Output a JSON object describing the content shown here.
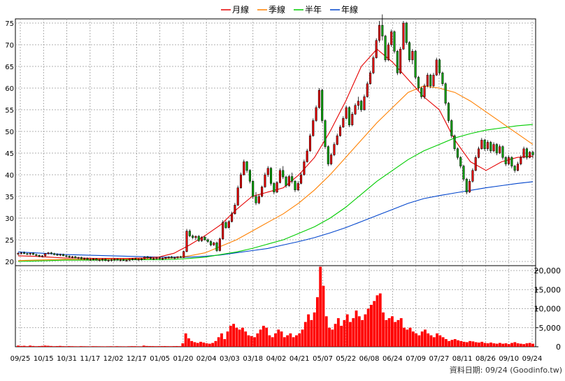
{
  "chart_data": {
    "type": "candlestick-with-volume",
    "legend": {
      "position": "top-center",
      "items": [
        {
          "name": "月線",
          "color": "#e60000"
        },
        {
          "name": "季線",
          "color": "#ff8000"
        },
        {
          "name": "半年",
          "color": "#00cc00"
        },
        {
          "name": "年線",
          "color": "#0044cc"
        }
      ]
    },
    "price_axis": {
      "min": 20,
      "max": 75,
      "ticks": [
        "20",
        "25",
        "30",
        "35",
        "40",
        "45",
        "50",
        "55",
        "60",
        "65",
        "70",
        "75"
      ],
      "grid": true
    },
    "volume_axis": {
      "min": 0,
      "max": 20000,
      "ticks": [
        "0",
        "5,000",
        "10,000",
        "15,000",
        "20,000"
      ]
    },
    "x_tick_labels": [
      "09/25",
      "10/15",
      "10/31",
      "11/17",
      "12/02",
      "12/17",
      "01/05",
      "01/20",
      "02/04",
      "03/03",
      "03/18",
      "04/02",
      "04/21",
      "05/07",
      "05/22",
      "06/08",
      "06/24",
      "07/09",
      "07/27",
      "08/11",
      "08/26",
      "09/10",
      "09/24"
    ],
    "footer": "資料日期: 09/24 (Goodinfo.tw)",
    "colors": {
      "up": "#e60000",
      "down": "#00a000",
      "volume": "#ff0000",
      "grid": "#999999"
    },
    "candles": [
      [
        21.7,
        22.1,
        21.4,
        21.9
      ],
      [
        21.9,
        22.2,
        21.6,
        22.0
      ],
      [
        22.0,
        22.3,
        21.7,
        21.8
      ],
      [
        21.8,
        22.0,
        21.5,
        21.7
      ],
      [
        21.7,
        22.0,
        21.4,
        21.9
      ],
      [
        21.9,
        22.1,
        21.5,
        21.6
      ],
      [
        21.6,
        21.8,
        21.2,
        21.4
      ],
      [
        21.4,
        21.6,
        21.0,
        21.2
      ],
      [
        21.2,
        21.5,
        20.9,
        21.3
      ],
      [
        21.3,
        21.9,
        21.1,
        21.8
      ],
      [
        21.8,
        22.2,
        21.6,
        22.0
      ],
      [
        22.0,
        22.2,
        21.6,
        21.8
      ],
      [
        21.8,
        22.0,
        21.4,
        21.6
      ],
      [
        21.6,
        21.9,
        21.3,
        21.5
      ],
      [
        21.5,
        21.8,
        21.2,
        21.6
      ],
      [
        21.6,
        21.8,
        21.2,
        21.3
      ],
      [
        21.3,
        21.5,
        21.0,
        21.2
      ],
      [
        21.2,
        21.4,
        20.8,
        21.0
      ],
      [
        21.0,
        21.3,
        20.7,
        21.1
      ],
      [
        21.1,
        21.3,
        20.7,
        20.8
      ],
      [
        20.8,
        21.1,
        20.5,
        20.9
      ],
      [
        20.9,
        21.1,
        20.5,
        20.6
      ],
      [
        20.6,
        20.9,
        20.3,
        20.7
      ],
      [
        20.7,
        20.9,
        20.3,
        20.4
      ],
      [
        20.4,
        20.7,
        20.1,
        20.5
      ],
      [
        20.5,
        20.8,
        20.2,
        20.6
      ],
      [
        20.6,
        20.8,
        20.2,
        20.3
      ],
      [
        20.3,
        20.6,
        20.0,
        20.4
      ],
      [
        20.4,
        20.7,
        20.1,
        20.5
      ],
      [
        20.5,
        20.7,
        20.1,
        20.2
      ],
      [
        20.2,
        20.5,
        19.9,
        20.3
      ],
      [
        20.3,
        20.6,
        20.0,
        20.4
      ],
      [
        20.4,
        20.7,
        20.1,
        20.5
      ],
      [
        20.5,
        20.7,
        20.2,
        20.3
      ],
      [
        20.3,
        20.6,
        20.0,
        20.4
      ],
      [
        20.4,
        20.6,
        20.1,
        20.2
      ],
      [
        20.2,
        20.5,
        19.9,
        20.3
      ],
      [
        20.3,
        20.6,
        20.0,
        20.5
      ],
      [
        20.5,
        20.8,
        20.2,
        20.6
      ],
      [
        20.6,
        20.9,
        20.3,
        20.4
      ],
      [
        20.4,
        20.7,
        20.1,
        20.5
      ],
      [
        20.5,
        20.8,
        20.2,
        20.6
      ],
      [
        20.6,
        21.2,
        20.4,
        21.0
      ],
      [
        21.0,
        21.3,
        20.6,
        20.8
      ],
      [
        20.8,
        21.1,
        20.5,
        20.6
      ],
      [
        20.6,
        20.9,
        20.3,
        20.7
      ],
      [
        20.7,
        21.0,
        20.4,
        20.8
      ],
      [
        20.8,
        21.1,
        20.5,
        20.6
      ],
      [
        20.6,
        20.9,
        20.3,
        20.7
      ],
      [
        20.7,
        21.0,
        20.4,
        20.9
      ],
      [
        20.9,
        21.2,
        20.6,
        21.0
      ],
      [
        21.0,
        21.3,
        20.7,
        20.8
      ],
      [
        20.8,
        21.1,
        20.5,
        20.9
      ],
      [
        20.9,
        21.2,
        20.6,
        21.1
      ],
      [
        21.1,
        21.3,
        20.8,
        20.9
      ],
      [
        20.9,
        22.5,
        20.8,
        22.3
      ],
      [
        22.3,
        27.5,
        22.1,
        27.0
      ],
      [
        27.0,
        27.4,
        25.6,
        25.9
      ],
      [
        25.9,
        26.2,
        25.2,
        25.5
      ],
      [
        25.5,
        26.0,
        25.0,
        25.8
      ],
      [
        25.8,
        26.1,
        24.5,
        24.8
      ],
      [
        24.8,
        25.8,
        24.5,
        25.6
      ],
      [
        25.6,
        25.9,
        24.8,
        25.0
      ],
      [
        25.0,
        25.3,
        24.3,
        24.6
      ],
      [
        24.6,
        24.9,
        23.5,
        23.8
      ],
      [
        23.8,
        24.5,
        23.6,
        24.3
      ],
      [
        24.3,
        24.6,
        22.2,
        22.5
      ],
      [
        22.5,
        25.5,
        22.3,
        25.2
      ],
      [
        25.2,
        29.5,
        25.0,
        29.0
      ],
      [
        29.0,
        29.4,
        27.5,
        27.8
      ],
      [
        27.8,
        29.5,
        27.6,
        29.2
      ],
      [
        29.2,
        31.5,
        29.0,
        31.0
      ],
      [
        31.0,
        33.5,
        30.8,
        33.0
      ],
      [
        33.0,
        37.5,
        32.8,
        37.0
      ],
      [
        37.0,
        40.5,
        36.8,
        40.0
      ],
      [
        40.0,
        43.5,
        39.8,
        43.0
      ],
      [
        43.0,
        43.2,
        40.5,
        41.0
      ],
      [
        41.0,
        41.3,
        38.0,
        38.5
      ],
      [
        38.5,
        38.8,
        34.5,
        35.0
      ],
      [
        35.0,
        36.0,
        33.0,
        33.5
      ],
      [
        33.5,
        35.5,
        33.2,
        35.0
      ],
      [
        35.0,
        37.5,
        34.8,
        37.2
      ],
      [
        37.2,
        40.5,
        37.0,
        40.0
      ],
      [
        40.0,
        42.0,
        39.5,
        41.5
      ],
      [
        41.5,
        41.8,
        37.5,
        38.0
      ],
      [
        38.0,
        38.3,
        35.5,
        36.0
      ],
      [
        36.0,
        38.5,
        35.8,
        38.2
      ],
      [
        38.2,
        41.5,
        38.0,
        41.0
      ],
      [
        41.0,
        42.0,
        39.0,
        39.5
      ],
      [
        39.5,
        39.8,
        37.0,
        37.5
      ],
      [
        37.5,
        40.0,
        37.2,
        39.6
      ],
      [
        39.6,
        40.5,
        38.0,
        38.5
      ],
      [
        38.5,
        38.8,
        36.0,
        36.5
      ],
      [
        36.5,
        38.5,
        36.2,
        38.0
      ],
      [
        38.0,
        40.5,
        37.8,
        40.0
      ],
      [
        40.0,
        43.5,
        39.8,
        43.0
      ],
      [
        43.0,
        46.0,
        42.8,
        45.5
      ],
      [
        45.5,
        49.5,
        45.3,
        49.0
      ],
      [
        49.0,
        53.0,
        48.8,
        52.5
      ],
      [
        52.5,
        56.0,
        52.2,
        55.5
      ],
      [
        55.5,
        60.0,
        55.2,
        59.5
      ],
      [
        59.5,
        59.8,
        52.0,
        52.5
      ],
      [
        52.5,
        52.8,
        46.0,
        46.5
      ],
      [
        46.5,
        46.8,
        42.0,
        42.5
      ],
      [
        42.5,
        45.0,
        42.2,
        44.6
      ],
      [
        44.6,
        47.5,
        44.3,
        47.0
      ],
      [
        47.0,
        49.5,
        46.8,
        49.0
      ],
      [
        49.0,
        51.5,
        48.8,
        51.0
      ],
      [
        51.0,
        53.5,
        50.8,
        53.0
      ],
      [
        53.0,
        56.0,
        52.8,
        55.5
      ],
      [
        55.5,
        55.8,
        51.0,
        51.5
      ],
      [
        51.5,
        54.5,
        51.2,
        54.0
      ],
      [
        54.0,
        56.5,
        53.8,
        56.0
      ],
      [
        56.0,
        58.0,
        55.0,
        57.0
      ],
      [
        57.0,
        57.3,
        54.5,
        55.0
      ],
      [
        55.0,
        58.5,
        54.8,
        58.0
      ],
      [
        58.0,
        61.5,
        57.8,
        61.0
      ],
      [
        61.0,
        64.0,
        60.8,
        63.5
      ],
      [
        63.5,
        67.5,
        63.2,
        67.0
      ],
      [
        67.0,
        71.5,
        66.8,
        71.0
      ],
      [
        71.0,
        75.5,
        70.5,
        74.5
      ],
      [
        74.5,
        77.0,
        71.0,
        72.0
      ],
      [
        72.0,
        72.3,
        66.0,
        66.5
      ],
      [
        66.5,
        70.5,
        66.2,
        70.0
      ],
      [
        70.0,
        73.5,
        69.5,
        73.0
      ],
      [
        73.0,
        73.3,
        68.0,
        68.5
      ],
      [
        68.5,
        68.8,
        63.0,
        63.5
      ],
      [
        63.5,
        69.5,
        63.2,
        69.0
      ],
      [
        69.0,
        75.5,
        68.8,
        75.0
      ],
      [
        75.0,
        75.3,
        70.0,
        70.5
      ],
      [
        70.5,
        70.8,
        66.0,
        66.5
      ],
      [
        66.5,
        69.0,
        65.5,
        68.5
      ],
      [
        68.5,
        68.8,
        62.0,
        62.5
      ],
      [
        62.5,
        62.8,
        59.5,
        60.0
      ],
      [
        60.0,
        60.3,
        57.5,
        58.0
      ],
      [
        58.0,
        61.0,
        57.5,
        60.5
      ],
      [
        60.5,
        63.5,
        60.2,
        63.0
      ],
      [
        63.0,
        63.3,
        60.0,
        60.5
      ],
      [
        60.5,
        63.5,
        60.2,
        63.0
      ],
      [
        63.0,
        67.0,
        62.8,
        66.5
      ],
      [
        66.5,
        66.8,
        63.0,
        63.5
      ],
      [
        63.5,
        63.8,
        60.5,
        61.0
      ],
      [
        61.0,
        61.3,
        56.0,
        56.5
      ],
      [
        56.5,
        56.8,
        52.0,
        52.5
      ],
      [
        52.5,
        52.8,
        48.5,
        49.0
      ],
      [
        49.0,
        49.3,
        45.5,
        46.0
      ],
      [
        46.0,
        46.3,
        43.5,
        44.0
      ],
      [
        44.0,
        44.3,
        41.5,
        42.0
      ],
      [
        42.0,
        42.3,
        38.5,
        39.0
      ],
      [
        39.0,
        39.3,
        35.5,
        36.0
      ],
      [
        36.0,
        39.0,
        35.8,
        38.5
      ],
      [
        38.5,
        41.5,
        38.2,
        41.0
      ],
      [
        41.0,
        44.5,
        40.8,
        44.0
      ],
      [
        44.0,
        46.5,
        43.8,
        46.0
      ],
      [
        46.0,
        48.5,
        45.8,
        48.0
      ],
      [
        48.0,
        48.3,
        45.5,
        46.0
      ],
      [
        46.0,
        48.0,
        45.5,
        47.5
      ],
      [
        47.5,
        47.8,
        45.0,
        45.5
      ],
      [
        45.5,
        47.5,
        45.2,
        47.0
      ],
      [
        47.0,
        47.3,
        44.5,
        45.0
      ],
      [
        45.0,
        47.0,
        44.8,
        46.5
      ],
      [
        46.5,
        46.8,
        43.5,
        44.0
      ],
      [
        44.0,
        44.3,
        42.0,
        42.5
      ],
      [
        42.5,
        44.5,
        42.2,
        44.0
      ],
      [
        44.0,
        44.3,
        41.5,
        42.0
      ],
      [
        42.0,
        42.3,
        40.5,
        41.0
      ],
      [
        41.0,
        43.0,
        40.8,
        42.5
      ],
      [
        42.5,
        44.5,
        42.2,
        44.0
      ],
      [
        44.0,
        46.5,
        43.8,
        46.0
      ],
      [
        46.0,
        46.3,
        43.5,
        44.0
      ],
      [
        44.0,
        45.5,
        43.8,
        45.2
      ],
      [
        45.2,
        45.5,
        43.8,
        44.6
      ]
    ],
    "ma20": [
      21.3,
      21.2,
      21.0,
      20.8,
      20.8,
      20.7,
      20.7,
      20.7,
      20.8,
      21.0,
      21.9,
      23.8,
      26.0,
      28.5,
      32.0,
      35.0,
      36.0,
      37.0,
      40.0,
      44.0,
      50.0,
      57.0,
      65.0,
      69.0,
      66.0,
      62.0,
      58.0,
      55.0,
      48.0,
      43.0,
      41.0,
      43.0,
      44.0,
      44.3
    ],
    "ma60": [
      20.2,
      20.3,
      20.4,
      20.5,
      20.5,
      20.5,
      20.6,
      20.6,
      20.6,
      20.7,
      20.8,
      21.3,
      22.0,
      23.5,
      25.0,
      27.0,
      29.0,
      31.0,
      33.5,
      36.5,
      40.0,
      44.0,
      48.0,
      52.0,
      55.5,
      59.0,
      60.5,
      60.0,
      59.0,
      57.0,
      54.5,
      52.0,
      49.5,
      47.0
    ],
    "ma120": [
      20.0,
      20.1,
      20.2,
      20.3,
      20.3,
      20.3,
      20.3,
      20.4,
      20.4,
      20.4,
      20.5,
      20.7,
      21.0,
      21.6,
      22.2,
      23.0,
      24.0,
      25.0,
      26.5,
      28.0,
      30.0,
      32.5,
      35.5,
      38.5,
      41.0,
      43.5,
      45.5,
      47.0,
      48.5,
      49.5,
      50.3,
      50.8,
      51.3,
      51.6
    ],
    "ma240": [
      22.2,
      22.0,
      21.8,
      21.6,
      21.5,
      21.4,
      21.3,
      21.2,
      21.1,
      21.0,
      21.0,
      21.0,
      21.2,
      21.5,
      22.0,
      22.5,
      23.0,
      23.8,
      24.6,
      25.5,
      26.6,
      27.8,
      29.2,
      30.6,
      32.0,
      33.4,
      34.5,
      35.2,
      35.8,
      36.4,
      37.0,
      37.5,
      38.0,
      38.4
    ],
    "volume": [
      300,
      200,
      250,
      150,
      300,
      200,
      150,
      180,
      220,
      300,
      250,
      200,
      150,
      180,
      220,
      160,
      140,
      170,
      150,
      130,
      120,
      160,
      140,
      130,
      120,
      150,
      140,
      130,
      120,
      110,
      130,
      140,
      120,
      150,
      130,
      120,
      110,
      140,
      160,
      150,
      130,
      120,
      300,
      200,
      180,
      170,
      150,
      160,
      170,
      180,
      160,
      150,
      170,
      180,
      160,
      900,
      3500,
      2200,
      1500,
      1200,
      1000,
      1300,
      1100,
      900,
      800,
      1000,
      1500,
      2500,
      3500,
      2000,
      4000,
      5500,
      6000,
      5000,
      4500,
      5000,
      4000,
      3000,
      2800,
      2500,
      3500,
      4500,
      5500,
      5000,
      3000,
      2500,
      3500,
      4500,
      4000,
      2500,
      3000,
      3500,
      2500,
      3000,
      3500,
      4500,
      6500,
      8500,
      7000,
      9000,
      13000,
      21000,
      16000,
      8000,
      5000,
      4500,
      6000,
      7500,
      5500,
      7000,
      8500,
      6500,
      7500,
      9500,
      8000,
      7000,
      8500,
      10000,
      11000,
      12000,
      13500,
      14000,
      9000,
      7000,
      7500,
      8000,
      6500,
      7000,
      7500,
      5000,
      4500,
      5000,
      4000,
      3500,
      3000,
      4000,
      4500,
      3500,
      3000,
      2500,
      3500,
      3000,
      2500,
      2000,
      1500,
      1800,
      2000,
      1700,
      1500,
      1300,
      1200,
      1500,
      1400,
      1200,
      1100,
      1300,
      1000,
      900,
      1100,
      900,
      800,
      1000,
      800,
      900,
      700,
      1000,
      1200,
      900,
      800,
      700,
      900,
      1000,
      800
    ]
  }
}
